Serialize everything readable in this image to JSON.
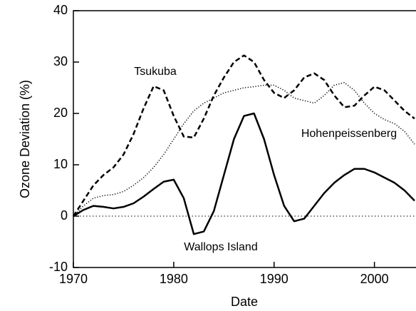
{
  "chart_data": {
    "type": "line",
    "x_label": "Date",
    "y_label": "Ozone Deviation (%)",
    "x": [
      1970,
      1971,
      1972,
      1973,
      1974,
      1975,
      1976,
      1977,
      1978,
      1979,
      1980,
      1981,
      1982,
      1983,
      1984,
      1985,
      1986,
      1987,
      1988,
      1989,
      1990,
      1991,
      1992,
      1993,
      1994,
      1995,
      1996,
      1997,
      1998,
      1999,
      2000,
      2001,
      2002,
      2003,
      2004
    ],
    "series": [
      {
        "name": "Tsukuba",
        "color": "#000000",
        "dash": "dashed",
        "values": [
          0,
          3,
          6,
          8,
          9.5,
          12,
          16,
          21,
          25.3,
          24.5,
          19.5,
          15.5,
          15.3,
          19,
          23.5,
          27,
          30,
          31.3,
          30,
          26.5,
          24,
          23,
          24.5,
          27,
          27.8,
          26.5,
          23.5,
          21.2,
          21.5,
          23.5,
          25.2,
          24.5,
          22.5,
          20.5,
          19
        ]
      },
      {
        "name": "Hohenpeissenberg",
        "color": "#000000",
        "dash": "dotted",
        "values": [
          0,
          2,
          3.5,
          4,
          4.2,
          4.8,
          6,
          7.5,
          9.5,
          12,
          15,
          18,
          20.5,
          22,
          23,
          24,
          24.5,
          25,
          25.2,
          25.5,
          25.5,
          24.5,
          23,
          22.5,
          22,
          23.5,
          25.5,
          26,
          24.5,
          22,
          20,
          18.8,
          18,
          16.5,
          14
        ]
      },
      {
        "name": "Wallops Island",
        "color": "#000000",
        "dash": "solid",
        "values": [
          0,
          1.2,
          2,
          1.8,
          1.5,
          1.8,
          2.5,
          3.8,
          5.3,
          6.7,
          7.1,
          3.5,
          -3.5,
          -3,
          1,
          8,
          15,
          19.5,
          20,
          15,
          8,
          2,
          -1,
          -0.5,
          2,
          4.5,
          6.5,
          8,
          9.2,
          9.2,
          8.5,
          7.5,
          6.5,
          5,
          3
        ]
      }
    ],
    "reference_line": 0,
    "xlim": [
      1970,
      2004
    ],
    "xticks": [
      1970,
      1980,
      1990,
      2000
    ],
    "ylim": [
      -10,
      40
    ],
    "yticks": [
      -10,
      0,
      10,
      20,
      30,
      40
    ]
  }
}
